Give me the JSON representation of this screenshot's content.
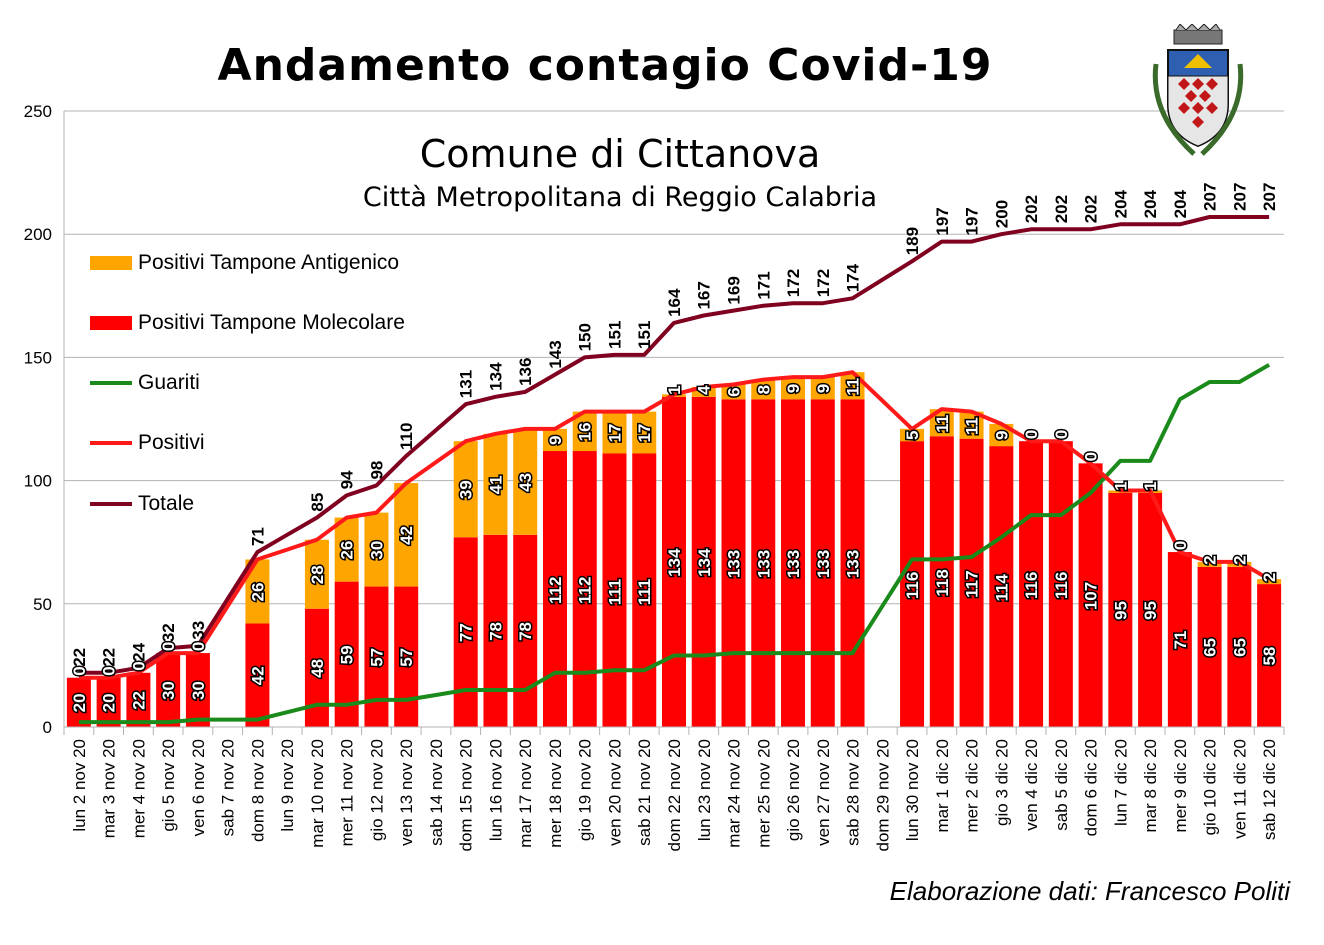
{
  "title": "Andamento contagio Covid-19",
  "subtitle": "Comune di Cittanova",
  "subtitle2": "Città Metropolitana di Reggio Calabria",
  "credit": "Elaborazione dati: Francesco Politi",
  "colors": {
    "antigenico": "#ffa500",
    "molecolare": "#ff0000",
    "guariti": "#1a8a1a",
    "positivi": "#ff1a1a",
    "totale": "#800020"
  },
  "chart_data": {
    "type": "bar",
    "ylim": [
      0,
      250
    ],
    "yticks": [
      0,
      50,
      100,
      150,
      200,
      250
    ],
    "categories": [
      "lun 2 nov 20",
      "mar 3 nov 20",
      "mer 4 nov 20",
      "gio 5 nov 20",
      "ven 6 nov 20",
      "sab 7 nov 20",
      "dom 8 nov 20",
      "lun 9 nov 20",
      "mar 10 nov 20",
      "mer 11 nov 20",
      "gio 12 nov 20",
      "ven 13 nov 20",
      "sab 14 nov 20",
      "dom 15 nov 20",
      "lun 16 nov 20",
      "mar 17 nov 20",
      "mer 18 nov 20",
      "gio 19 nov 20",
      "ven 20 nov 20",
      "sab 21 nov 20",
      "dom 22 nov 20",
      "lun 23 nov 20",
      "mar 24 nov 20",
      "mer 25 nov 20",
      "gio 26 nov 20",
      "ven 27 nov 20",
      "sab 28 nov 20",
      "dom 29 nov 20",
      "lun 30 nov 20",
      "mar 1 dic 20",
      "mer 2 dic 20",
      "gio 3 dic 20",
      "ven 4 dic 20",
      "sab 5 dic 20",
      "dom 6 dic 20",
      "lun 7 dic 20",
      "mar 8 dic 20",
      "mer 9 dic 20",
      "gio 10 dic 20",
      "ven 11 dic 20",
      "sab 12 dic 20"
    ],
    "series": [
      {
        "name": "Positivi Tampone Antigenico",
        "kind": "bar",
        "values": [
          0,
          0,
          0,
          0,
          0,
          null,
          26,
          null,
          28,
          26,
          30,
          42,
          null,
          39,
          41,
          43,
          9,
          16,
          17,
          17,
          1,
          4,
          6,
          8,
          9,
          9,
          11,
          null,
          5,
          11,
          11,
          9,
          0,
          0,
          0,
          1,
          1,
          0,
          2,
          2,
          2
        ]
      },
      {
        "name": "Positivi Tampone Molecolare",
        "kind": "bar",
        "values": [
          20,
          20,
          22,
          30,
          30,
          null,
          42,
          null,
          48,
          59,
          57,
          57,
          null,
          77,
          78,
          78,
          112,
          112,
          111,
          111,
          134,
          134,
          133,
          133,
          133,
          133,
          133,
          null,
          116,
          118,
          117,
          114,
          116,
          116,
          107,
          95,
          95,
          71,
          65,
          65,
          58
        ]
      },
      {
        "name": "Guariti",
        "kind": "line",
        "values": [
          2,
          2,
          2,
          2,
          3,
          3,
          3,
          6,
          9,
          9,
          11,
          11,
          13,
          15,
          15,
          15,
          22,
          22,
          23,
          23,
          29,
          29,
          30,
          30,
          30,
          30,
          30,
          null,
          68,
          68,
          69,
          77,
          86,
          86,
          95,
          108,
          108,
          133,
          140,
          140,
          147
        ]
      },
      {
        "name": "Positivi",
        "kind": "line",
        "values": [
          20,
          20,
          22,
          30,
          30,
          null,
          68,
          72,
          76,
          85,
          87,
          99,
          null,
          116,
          119,
          121,
          121,
          128,
          128,
          128,
          135,
          138,
          139,
          141,
          142,
          142,
          144,
          null,
          121,
          129,
          128,
          123,
          116,
          116,
          107,
          96,
          96,
          71,
          67,
          67,
          60
        ]
      },
      {
        "name": "Totale",
        "kind": "line",
        "values": [
          22,
          22,
          24,
          32,
          33,
          null,
          71,
          78,
          85,
          94,
          98,
          110,
          null,
          131,
          134,
          136,
          143,
          150,
          151,
          151,
          164,
          167,
          169,
          171,
          172,
          172,
          174,
          null,
          189,
          197,
          197,
          200,
          202,
          202,
          202,
          204,
          204,
          204,
          207,
          207,
          207
        ],
        "labels": [
          "22",
          "22",
          "24",
          "32",
          "33",
          "",
          "71",
          "",
          "85",
          "94",
          "98",
          "110",
          "",
          "131",
          "134",
          "136",
          "143",
          "150",
          "151",
          "151",
          "164",
          "167",
          "169",
          "171",
          "172",
          "172",
          "174",
          "",
          "189",
          "197",
          "197",
          "200",
          "202",
          "202",
          "202",
          "204",
          "204",
          "204",
          "207",
          "207",
          "207"
        ]
      }
    ]
  }
}
